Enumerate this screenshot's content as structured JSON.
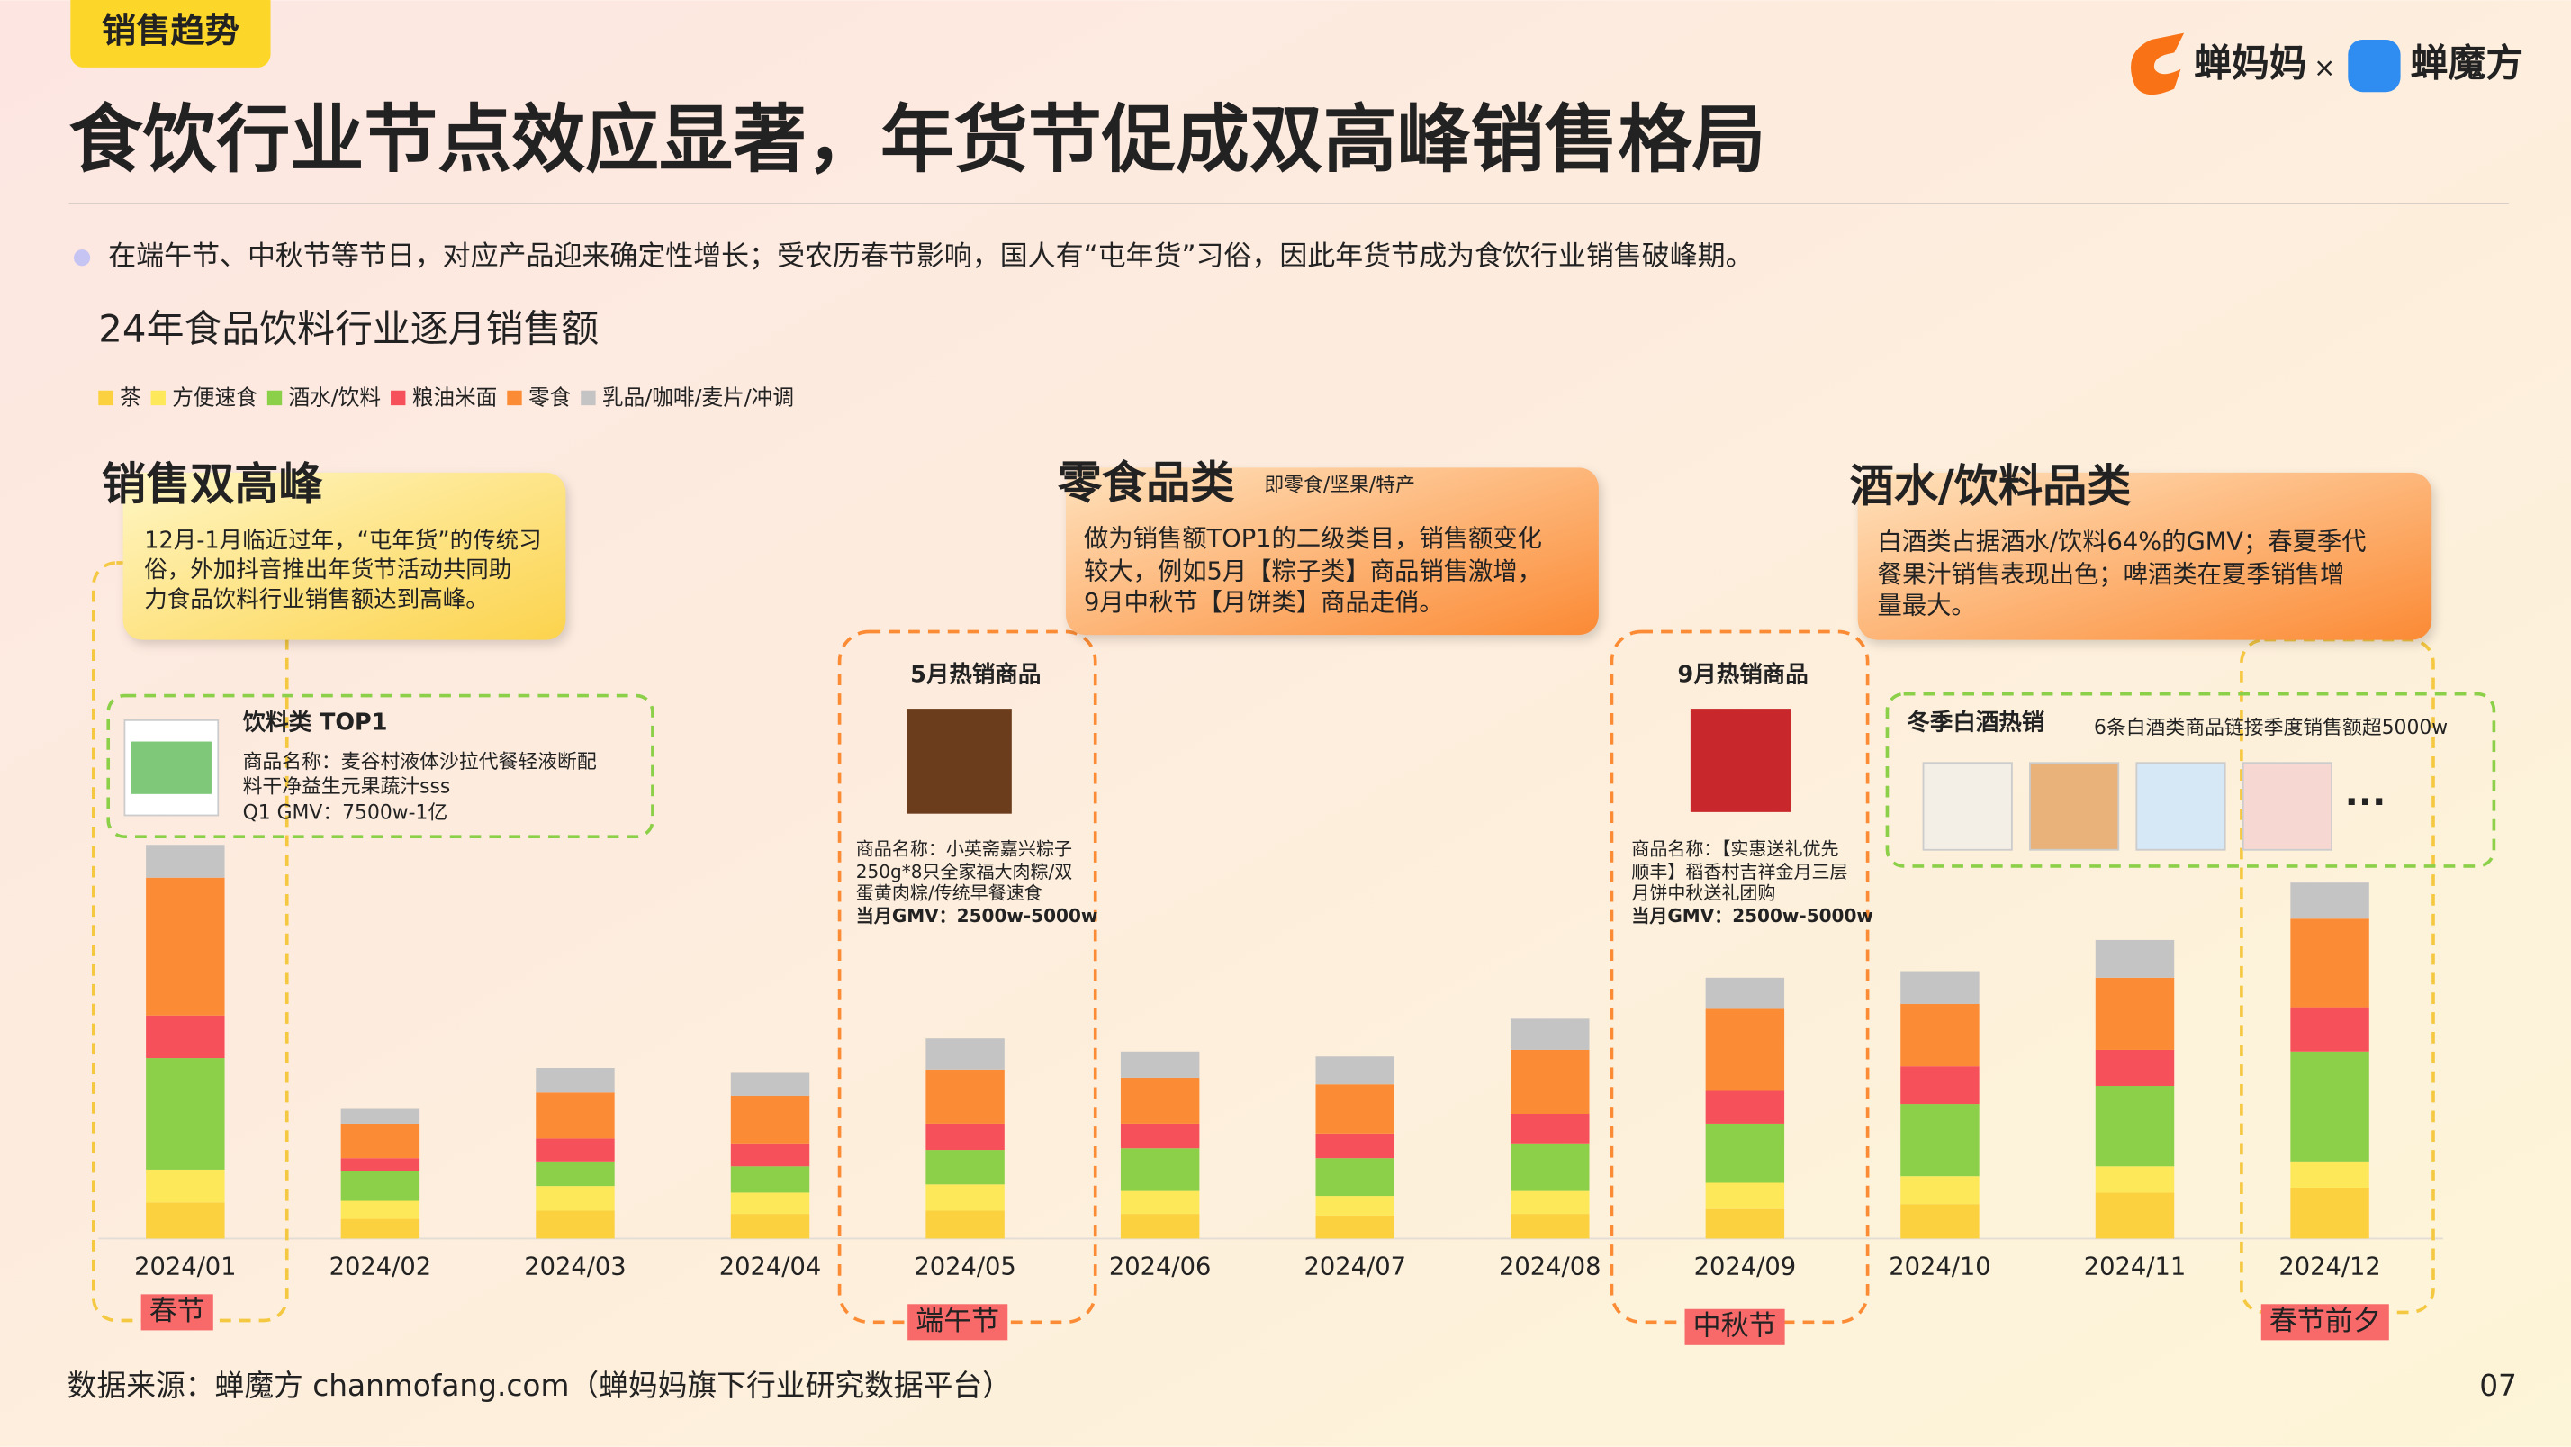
{
  "header": {
    "tag": "销售趋势",
    "title": "食饮行业节点效应显著，年货节促成双高峰销售格局",
    "bullet": "在端午节、中秋节等节日，对应产品迎来确定性增长；受农历春节影响，国人有“屯年货”习俗，因此年货节成为食饮行业销售破峰期。",
    "logo_left": "蝉妈妈",
    "logo_sep": "×",
    "logo_right": "蝉魔方"
  },
  "chart_data": {
    "type": "stacked_bar",
    "title": "24年食品饮料行业逐月销售额",
    "categories": [
      "2024/01",
      "2024/02",
      "2024/03",
      "2024/04",
      "2024/05",
      "2024/06",
      "2024/07",
      "2024/08",
      "2024/09",
      "2024/10",
      "2024/11",
      "2024/12"
    ],
    "series": [
      {
        "name": "茶",
        "color": "#fbd13f",
        "values": [
          22,
          12,
          17,
          15,
          17,
          15,
          14,
          15,
          18,
          21,
          28,
          31
        ]
      },
      {
        "name": "方便速食",
        "color": "#fde85a",
        "values": [
          20,
          11,
          15,
          13,
          16,
          14,
          12,
          14,
          16,
          17,
          16,
          16
        ]
      },
      {
        "name": "酒水/饮料",
        "color": "#8ccf48",
        "values": [
          68,
          18,
          15,
          16,
          21,
          26,
          23,
          29,
          36,
          44,
          49,
          67
        ]
      },
      {
        "name": "粮油米面",
        "color": "#f6505a",
        "values": [
          26,
          8,
          14,
          14,
          16,
          15,
          15,
          18,
          20,
          23,
          22,
          27
        ]
      },
      {
        "name": "零食",
        "color": "#fb8c35",
        "values": [
          84,
          21,
          28,
          29,
          33,
          28,
          30,
          39,
          50,
          38,
          44,
          54
        ]
      },
      {
        "name": "乳品/咖啡/麦片/冲调",
        "color": "#c4c4c4",
        "values": [
          20,
          9,
          15,
          14,
          19,
          16,
          17,
          19,
          19,
          20,
          23,
          22
        ]
      }
    ]
  },
  "callouts": [
    {
      "title": "销售双高峰",
      "lines": [
        "12月-1月临近过年，“屯年货”的传统习",
        "俗，外加抖音推出年货节活动共同助",
        "力食品饮料行业销售额达到高峰。"
      ]
    },
    {
      "title": "零食品类",
      "subtitle": "即零食/坚果/特产",
      "lines": [
        "做为销售额TOP1的二级类目，销售额变化",
        "较大，例如5月【粽子类】商品销售激增，",
        "9月中秋节【月饼类】商品走俏。"
      ]
    },
    {
      "title": "酒水/饮料品类",
      "lines": [
        "白酒类占据酒水/饮料64%的GMV；春夏季代",
        "餐果汁销售表现出色；啤酒类在夏季销售增",
        "量最大。"
      ]
    }
  ],
  "products": [
    {
      "title": "饮料类 TOP1",
      "lines": [
        "商品名称：麦谷村液体沙拉代餐轻液断配",
        "料干净益生元果蔬汁sss",
        "Q1 GMV：7500w-1亿"
      ]
    },
    {
      "title": "5月热销商品",
      "lines": [
        "商品名称：小英斋嘉兴粽子",
        "250g*8只全家福大肉粽/双",
        "蛋黄肉粽/传统早餐速食",
        "当月GMV：2500w-5000w"
      ]
    },
    {
      "title": "9月热销商品",
      "lines": [
        "商品名称：【实惠送礼优先",
        "顺丰】稻香村吉祥金月三层",
        "月饼中秋送礼团购",
        "当月GMV：2500w-5000w"
      ]
    },
    {
      "title": "冬季白酒热销",
      "note": "6条白酒类商品链接季度销售额超5000w",
      "more": "···"
    }
  ],
  "events": [
    "春节",
    "端午节",
    "中秋节",
    "春节前夕"
  ],
  "footer": {
    "source": "数据来源：蝉魔方 chanmofang.com（蝉妈妈旗下行业研究数据平台）",
    "page": "07"
  }
}
